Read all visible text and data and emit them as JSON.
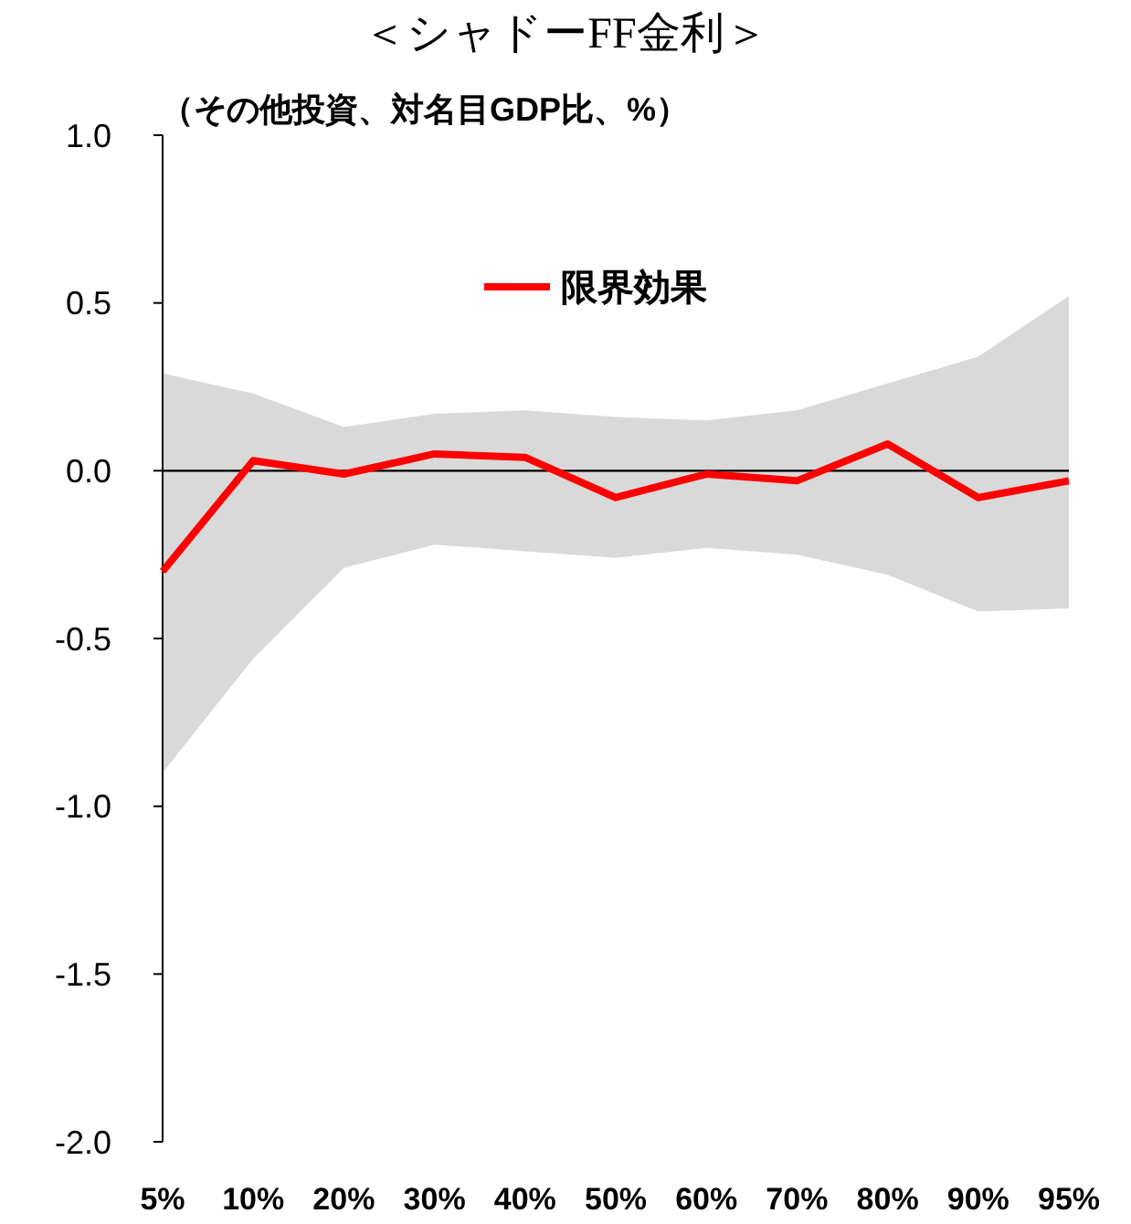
{
  "chart_data": {
    "type": "line",
    "title": "＜シャドーFF金利＞",
    "subtitle": "（その他投資、対名目GDP比、%）",
    "categories": [
      "5%",
      "10%",
      "20%",
      "30%",
      "40%",
      "50%",
      "60%",
      "70%",
      "80%",
      "90%",
      "95%"
    ],
    "series": [
      {
        "name": "限界効果",
        "color": "#ff0000",
        "values": [
          -0.3,
          0.03,
          -0.01,
          0.05,
          0.04,
          -0.08,
          -0.01,
          -0.03,
          0.08,
          -0.08,
          -0.03
        ],
        "upper": [
          0.29,
          0.23,
          0.13,
          0.17,
          0.18,
          0.16,
          0.15,
          0.18,
          0.26,
          0.34,
          0.52
        ],
        "lower": [
          -0.9,
          -0.56,
          -0.29,
          -0.22,
          -0.24,
          -0.26,
          -0.23,
          -0.25,
          -0.31,
          -0.42,
          -0.41
        ]
      }
    ],
    "ylim": [
      -2.0,
      1.0
    ],
    "yticks": [
      {
        "value": -2,
        "label": "-2.0"
      },
      {
        "value": -1.5,
        "label": "-1.5"
      },
      {
        "value": -1,
        "label": "-1.0"
      },
      {
        "value": -0.5,
        "label": "-0.5"
      },
      {
        "value": 0,
        "label": "0.0"
      },
      {
        "value": 0.5,
        "label": "0.5"
      },
      {
        "value": 1,
        "label": "1.0"
      }
    ],
    "ref_lines": [
      {
        "axis": "y",
        "value": 0,
        "color": "#000000"
      }
    ],
    "legend": "top",
    "grid": false,
    "line_style": "solid"
  }
}
